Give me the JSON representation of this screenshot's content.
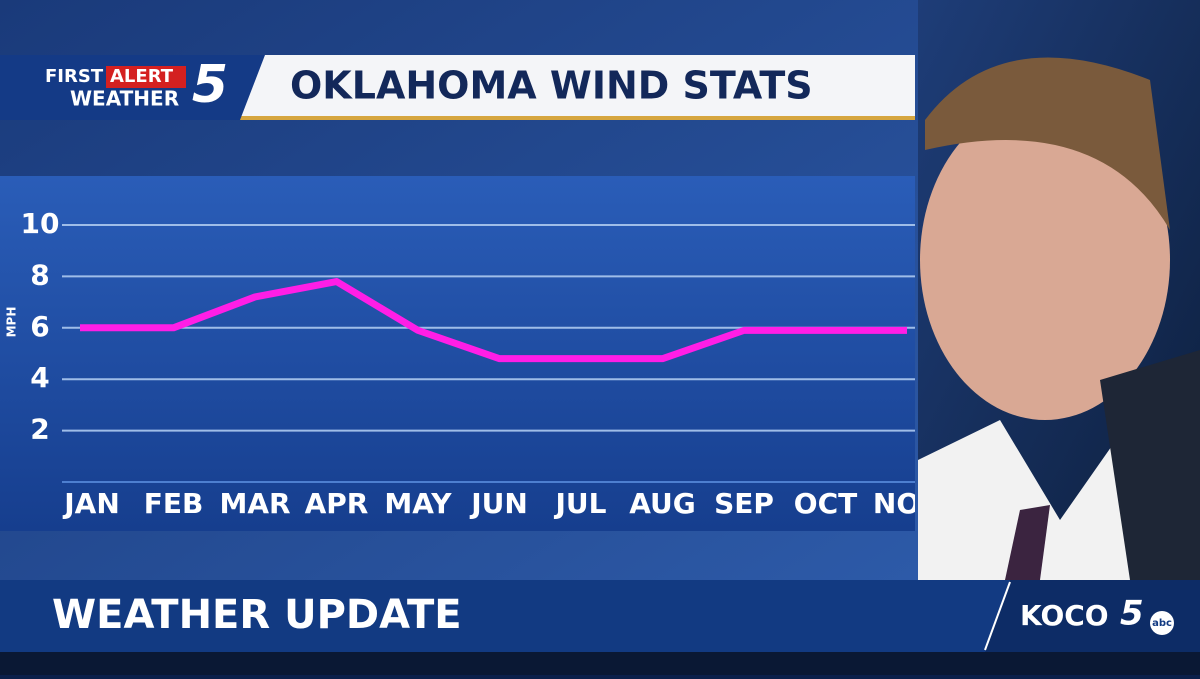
{
  "logo": {
    "first": "FIRST",
    "alert": "ALERT",
    "weather": "WEATHER",
    "number": "5"
  },
  "chart_data": {
    "type": "line",
    "title": "OKLAHOMA WIND STATS",
    "y_label": "MPH",
    "categories": [
      "JAN",
      "FEB",
      "MAR",
      "APR",
      "MAY",
      "JUN",
      "JUL",
      "AUG",
      "SEP",
      "OCT",
      "NOV"
    ],
    "values": [
      6,
      6,
      7.2,
      7.8,
      5.9,
      4.8,
      4.8,
      4.8,
      5.9,
      5.9,
      5.9
    ],
    "color": "#ff1ee6",
    "ylim": [
      0,
      10
    ],
    "yticks": [
      2,
      4,
      6,
      8,
      10
    ],
    "grid": true
  },
  "lower_third": {
    "headline": "WEATHER UPDATE",
    "station": "KOCO",
    "station_number": "5",
    "network": "abc"
  }
}
